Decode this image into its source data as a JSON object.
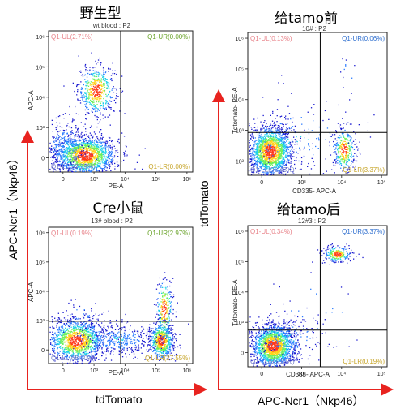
{
  "left_axis_label": "APC-Ncr1（Nkp46）",
  "left_bottom_label": "tdTomato",
  "right_axis_label": "tdTomato",
  "right_bottom_label": "APC-Ncr1（Nkp46）",
  "arrow_color": "#e8231f",
  "quadrant_colors": {
    "UL": "#e8838a",
    "UR_A": "#6aa32a",
    "UR_B": "#2f6fcf",
    "LL": "#6f7bc8",
    "LR": "#c7a52a"
  },
  "panels": [
    {
      "id": "wt",
      "title": "野生型",
      "subtitle": "wt blood : P2",
      "ylabel": "APC-A",
      "xlabel": "PE-A",
      "ur_color_key": "UR_A",
      "quadrants": {
        "UL": "Q1-UL(2.71%)",
        "UR": "Q1-UR(0.00%)",
        "LL": "Q1-LL(97.29%)",
        "LR": "Q1-LR(0.00%)"
      },
      "x_ticks": [
        "0",
        "10³",
        "10⁴",
        "10⁵",
        "10⁶"
      ],
      "y_ticks": [
        "10⁶",
        "10⁵",
        "10⁴",
        "10³",
        "0"
      ],
      "populations": [
        {
          "x": 0.33,
          "y": 0.58,
          "sx": 0.065,
          "sy": 0.09,
          "n": 520,
          "core": true
        },
        {
          "x": 0.25,
          "y": 0.12,
          "sx": 0.11,
          "sy": 0.07,
          "n": 1600,
          "core": true
        },
        {
          "x": 0.12,
          "y": 0.18,
          "sx": 0.09,
          "sy": 0.1,
          "n": 300,
          "core": false
        }
      ]
    },
    {
      "id": "before",
      "title": "给tamo前",
      "subtitle": "10# : P2",
      "ylabel": "Tdtomato- PE-A",
      "xlabel": "CD335- APC-A",
      "ur_color_key": "UR_B",
      "quadrants": {
        "UL": "Q1-UL(0.13%)",
        "UR": "Q1-UR(0.06%)",
        "LL": "Q1-LL(96.43%)",
        "LR": "Q1-LR(3.37%)"
      },
      "x_ticks": [
        "0",
        "10³",
        "10⁴",
        "10⁵"
      ],
      "y_ticks": [
        "10⁶",
        "10⁵",
        "10⁴",
        "10³",
        "10²"
      ],
      "populations": [
        {
          "x": 0.16,
          "y": 0.17,
          "sx": 0.08,
          "sy": 0.09,
          "n": 1700,
          "core": true
        },
        {
          "x": 0.69,
          "y": 0.18,
          "sx": 0.04,
          "sy": 0.08,
          "n": 330,
          "core": true
        },
        {
          "x": 0.72,
          "y": 0.72,
          "sx": 0.03,
          "sy": 0.08,
          "n": 12,
          "core": false
        },
        {
          "x": 0.35,
          "y": 0.25,
          "sx": 0.25,
          "sy": 0.15,
          "n": 180,
          "core": false
        }
      ]
    },
    {
      "id": "cre",
      "title": "Cre小鼠",
      "subtitle": "13# blood : P2",
      "ylabel": "APC-A",
      "xlabel": "PE-A",
      "ur_color_key": "UR_A",
      "quadrants": {
        "UL": "Q1-UL(0.19%)",
        "UR": "Q1-UR(2.97%)",
        "LL": "Q1-LL(68.90%)",
        "LR": "Q1-LR(27.55%)"
      },
      "x_ticks": [
        "0",
        "10³",
        "10⁴",
        "10⁵",
        "10⁶"
      ],
      "y_ticks": [
        "10⁶",
        "10⁵",
        "10⁴",
        "10³",
        "0"
      ],
      "populations": [
        {
          "x": 0.19,
          "y": 0.17,
          "sx": 0.1,
          "sy": 0.08,
          "n": 1300,
          "core": true
        },
        {
          "x": 0.78,
          "y": 0.17,
          "sx": 0.045,
          "sy": 0.07,
          "n": 650,
          "core": true
        },
        {
          "x": 0.8,
          "y": 0.4,
          "sx": 0.03,
          "sy": 0.12,
          "n": 260,
          "core": true
        },
        {
          "x": 0.48,
          "y": 0.18,
          "sx": 0.14,
          "sy": 0.06,
          "n": 380,
          "core": false
        },
        {
          "x": 0.2,
          "y": 0.36,
          "sx": 0.08,
          "sy": 0.05,
          "n": 40,
          "core": false
        }
      ]
    },
    {
      "id": "after",
      "title": "给tamo后",
      "subtitle": "12#3 : P2",
      "ylabel": "Tdtomato- PE-A",
      "xlabel": "CD335- APC-A",
      "ur_color_key": "UR_B",
      "quadrants": {
        "UL": "Q1-UL(0.34%)",
        "UR": "Q1-UR(3.37%)",
        "LL": "Q1-LL(96.10%)",
        "LR": "Q1-LR(0.19%)"
      },
      "x_ticks": [
        "0",
        "10³",
        "10⁴",
        "10⁵"
      ],
      "y_ticks": [
        "10⁶",
        "10⁵",
        "10⁴",
        "10³",
        "0"
      ],
      "populations": [
        {
          "x": 0.18,
          "y": 0.15,
          "sx": 0.08,
          "sy": 0.08,
          "n": 1700,
          "core": true
        },
        {
          "x": 0.64,
          "y": 0.8,
          "sx": 0.05,
          "sy": 0.03,
          "n": 240,
          "core": true
        },
        {
          "x": 0.3,
          "y": 0.2,
          "sx": 0.14,
          "sy": 0.09,
          "n": 200,
          "core": false
        },
        {
          "x": 0.5,
          "y": 0.45,
          "sx": 0.18,
          "sy": 0.18,
          "n": 25,
          "core": false
        }
      ]
    }
  ],
  "chart_data": [
    {
      "type": "scatter",
      "title": "野生型",
      "subtitle": "wt blood : P2",
      "xlabel": "PE-A",
      "ylabel": "APC-A",
      "quadrant_percent": {
        "UL": 2.71,
        "UR": 0.0,
        "LL": 97.29,
        "LR": 0.0
      }
    },
    {
      "type": "scatter",
      "title": "给tamo前",
      "subtitle": "10# : P2",
      "xlabel": "CD335- APC-A",
      "ylabel": "Tdtomato- PE-A",
      "quadrant_percent": {
        "UL": 0.13,
        "UR": 0.06,
        "LL": 96.43,
        "LR": 3.37
      }
    },
    {
      "type": "scatter",
      "title": "Cre小鼠",
      "subtitle": "13# blood : P2",
      "xlabel": "PE-A",
      "ylabel": "APC-A",
      "quadrant_percent": {
        "UL": 0.19,
        "UR": 2.97,
        "LL": 68.9,
        "LR": 27.55
      }
    },
    {
      "type": "scatter",
      "title": "给tamo后",
      "subtitle": "12#3 : P2",
      "xlabel": "CD335- APC-A",
      "ylabel": "Tdtomato- PE-A",
      "quadrant_percent": {
        "UL": 0.34,
        "UR": 3.37,
        "LL": 96.1,
        "LR": 0.19
      }
    }
  ]
}
